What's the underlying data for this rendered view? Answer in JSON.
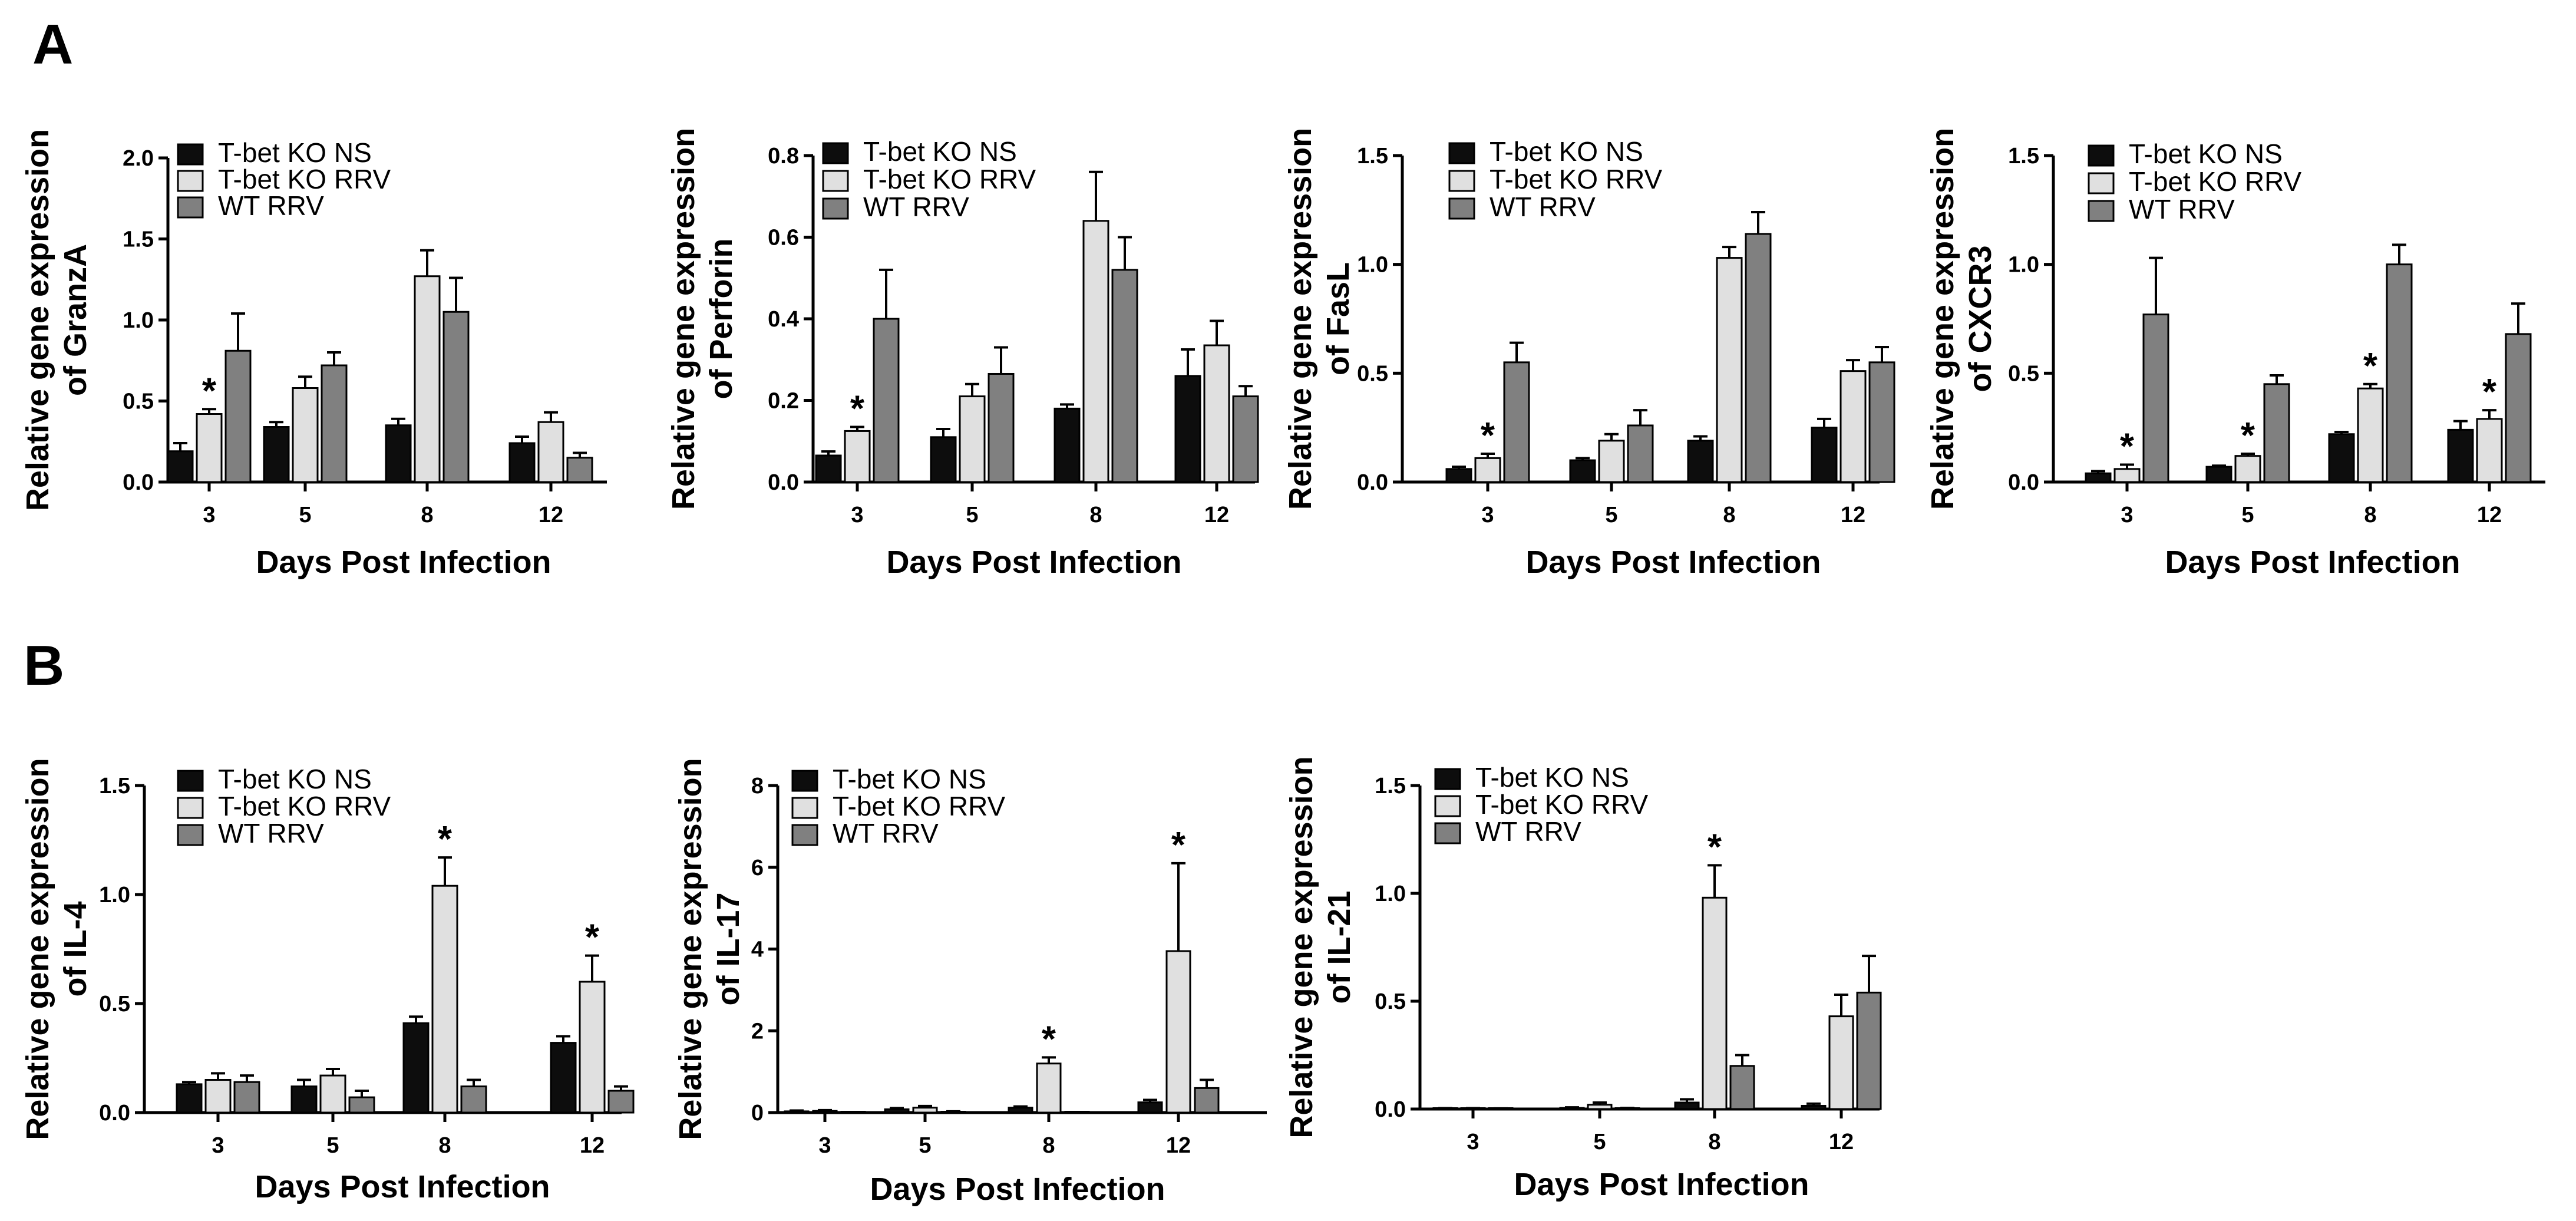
{
  "panel_labels": [
    "A",
    "B"
  ],
  "colors": {
    "T-bet KO NS": "#0d0d0d",
    "T-bet KO RRV": "#e0e0e0",
    "WT RRV": "#808080",
    "axis": "#000000"
  },
  "chart_data": [
    {
      "type": "bar",
      "panel": "A",
      "title": "",
      "ylabel": "Relative gene expression of GranzA",
      "xlabel": "Days Post Infection",
      "categories": [
        "3",
        "5",
        "8",
        "12"
      ],
      "ylim": [
        0,
        2.0
      ],
      "yticks": [
        "0.0",
        "0.5",
        "1.0",
        "1.5",
        "2.0"
      ],
      "legend": [
        "T-bet KO NS",
        "T-bet KO RRV",
        "WT RRV"
      ],
      "series": [
        {
          "name": "T-bet KO NS",
          "values": [
            0.19,
            0.34,
            0.35,
            0.24
          ],
          "errors": [
            0.05,
            0.03,
            0.04,
            0.04
          ]
        },
        {
          "name": "T-bet KO RRV",
          "values": [
            0.42,
            0.58,
            1.27,
            0.37
          ],
          "errors": [
            0.03,
            0.07,
            0.16,
            0.06
          ]
        },
        {
          "name": "WT RRV",
          "values": [
            0.81,
            0.72,
            1.05,
            0.15
          ],
          "errors": [
            0.23,
            0.08,
            0.21,
            0.03
          ]
        }
      ],
      "significance": [
        {
          "series": 1,
          "category": 0,
          "label": "*"
        }
      ]
    },
    {
      "type": "bar",
      "panel": "A",
      "title": "",
      "ylabel": "Relative gene expression of Perforin",
      "xlabel": "Days Post Infection",
      "categories": [
        "3",
        "5",
        "8",
        "12"
      ],
      "ylim": [
        0,
        0.8
      ],
      "yticks": [
        "0.0",
        "0.2",
        "0.4",
        "0.6",
        "0.8"
      ],
      "legend": [
        "T-bet KO NS",
        "T-bet KO RRV",
        "WT RRV"
      ],
      "series": [
        {
          "name": "T-bet KO NS",
          "values": [
            0.065,
            0.11,
            0.18,
            0.26
          ],
          "errors": [
            0.01,
            0.02,
            0.01,
            0.065
          ]
        },
        {
          "name": "T-bet KO RRV",
          "values": [
            0.125,
            0.21,
            0.64,
            0.335
          ],
          "errors": [
            0.01,
            0.03,
            0.12,
            0.06
          ]
        },
        {
          "name": "WT RRV",
          "values": [
            0.4,
            0.265,
            0.52,
            0.21
          ],
          "errors": [
            0.12,
            0.065,
            0.08,
            0.025
          ]
        }
      ],
      "significance": [
        {
          "series": 1,
          "category": 0,
          "label": "*"
        }
      ]
    },
    {
      "type": "bar",
      "panel": "A",
      "title": "",
      "ylabel": "Relative gene expression of FasL",
      "xlabel": "Days Post Infection",
      "categories": [
        "3",
        "5",
        "8",
        "12"
      ],
      "ylim": [
        0,
        1.5
      ],
      "yticks": [
        "0.0",
        "0.5",
        "1.0",
        "1.5"
      ],
      "legend": [
        "T-bet KO NS",
        "T-bet KO RRV",
        "WT RRV"
      ],
      "series": [
        {
          "name": "T-bet KO NS",
          "values": [
            0.06,
            0.1,
            0.19,
            0.25
          ],
          "errors": [
            0.01,
            0.01,
            0.02,
            0.04
          ]
        },
        {
          "name": "T-bet KO RRV",
          "values": [
            0.11,
            0.19,
            1.03,
            0.51
          ],
          "errors": [
            0.02,
            0.03,
            0.05,
            0.05
          ]
        },
        {
          "name": "WT RRV",
          "values": [
            0.55,
            0.26,
            1.14,
            0.55
          ],
          "errors": [
            0.09,
            0.07,
            0.1,
            0.07
          ]
        }
      ],
      "significance": [
        {
          "series": 1,
          "category": 0,
          "label": "*"
        }
      ]
    },
    {
      "type": "bar",
      "panel": "A",
      "title": "",
      "ylabel": "Relative gene expression of CXCR3",
      "xlabel": "Days Post Infection",
      "categories": [
        "3",
        "5",
        "8",
        "12"
      ],
      "ylim": [
        0,
        1.5
      ],
      "yticks": [
        "0.0",
        "0.5",
        "1.0",
        "1.5"
      ],
      "legend": [
        "T-bet KO NS",
        "T-bet KO RRV",
        "WT RRV"
      ],
      "series": [
        {
          "name": "T-bet KO NS",
          "values": [
            0.04,
            0.07,
            0.22,
            0.24
          ],
          "errors": [
            0.01,
            0.005,
            0.01,
            0.04
          ]
        },
        {
          "name": "T-bet KO RRV",
          "values": [
            0.06,
            0.12,
            0.43,
            0.29
          ],
          "errors": [
            0.02,
            0.01,
            0.02,
            0.04
          ]
        },
        {
          "name": "WT RRV",
          "values": [
            0.77,
            0.45,
            1.0,
            0.68
          ],
          "errors": [
            0.26,
            0.04,
            0.09,
            0.14
          ]
        }
      ],
      "significance": [
        {
          "series": 1,
          "category": 0,
          "label": "*"
        },
        {
          "series": 1,
          "category": 1,
          "label": "*"
        },
        {
          "series": 1,
          "category": 2,
          "label": "*"
        },
        {
          "series": 1,
          "category": 3,
          "label": "*"
        }
      ]
    },
    {
      "type": "bar",
      "panel": "B",
      "title": "",
      "ylabel": "Relative gene expression of IL-4",
      "xlabel": "Days Post Infection",
      "categories": [
        "3",
        "5",
        "8",
        "12"
      ],
      "ylim": [
        0,
        1.5
      ],
      "yticks": [
        "0.0",
        "0.5",
        "1.0",
        "1.5"
      ],
      "legend": [
        "T-bet KO NS",
        "T-bet KO RRV",
        "WT RRV"
      ],
      "series": [
        {
          "name": "T-bet KO NS",
          "values": [
            0.13,
            0.12,
            0.41,
            0.32
          ],
          "errors": [
            0.01,
            0.03,
            0.03,
            0.03
          ]
        },
        {
          "name": "T-bet KO RRV",
          "values": [
            0.15,
            0.17,
            1.04,
            0.6
          ],
          "errors": [
            0.03,
            0.03,
            0.13,
            0.12
          ]
        },
        {
          "name": "WT RRV",
          "values": [
            0.14,
            0.07,
            0.12,
            0.1
          ],
          "errors": [
            0.03,
            0.03,
            0.03,
            0.02
          ]
        }
      ],
      "significance": [
        {
          "series": 1,
          "category": 2,
          "label": "*"
        },
        {
          "series": 1,
          "category": 3,
          "label": "*"
        }
      ]
    },
    {
      "type": "bar",
      "panel": "B",
      "title": "",
      "ylabel": "Relative gene expression of IL-17",
      "xlabel": "Days Post Infection",
      "categories": [
        "3",
        "5",
        "8",
        "12"
      ],
      "ylim": [
        0,
        8
      ],
      "yticks": [
        "0",
        "2",
        "4",
        "6",
        "8"
      ],
      "legend": [
        "T-bet KO NS",
        "T-bet KO RRV",
        "WT RRV"
      ],
      "series": [
        {
          "name": "T-bet KO NS",
          "values": [
            0.03,
            0.08,
            0.12,
            0.25
          ],
          "errors": [
            0.02,
            0.03,
            0.03,
            0.06
          ]
        },
        {
          "name": "T-bet KO RRV",
          "values": [
            0.04,
            0.12,
            1.2,
            3.95
          ],
          "errors": [
            0.02,
            0.04,
            0.15,
            2.15
          ]
        },
        {
          "name": "WT RRV",
          "values": [
            0.01,
            0.02,
            0.01,
            0.6
          ],
          "errors": [
            0.005,
            0.01,
            0.005,
            0.2
          ]
        }
      ],
      "significance": [
        {
          "series": 1,
          "category": 2,
          "label": "*"
        },
        {
          "series": 1,
          "category": 3,
          "label": "*"
        }
      ]
    },
    {
      "type": "bar",
      "panel": "B",
      "title": "",
      "ylabel": "Relative gene expression of IL-21",
      "xlabel": "Days Post Infection",
      "categories": [
        "3",
        "5",
        "8",
        "12"
      ],
      "ylim": [
        0,
        1.5
      ],
      "yticks": [
        "0.0",
        "0.5",
        "1.0",
        "1.5"
      ],
      "legend": [
        "T-bet KO NS",
        "T-bet KO RRV",
        "WT RRV"
      ],
      "series": [
        {
          "name": "T-bet KO NS",
          "values": [
            0.002,
            0.005,
            0.03,
            0.015
          ],
          "errors": [
            0.002,
            0.003,
            0.015,
            0.01
          ]
        },
        {
          "name": "T-bet KO RRV",
          "values": [
            0.002,
            0.02,
            0.98,
            0.43
          ],
          "errors": [
            0.002,
            0.01,
            0.15,
            0.1
          ]
        },
        {
          "name": "WT RRV",
          "values": [
            0.002,
            0.003,
            0.2,
            0.54
          ],
          "errors": [
            0.001,
            0.002,
            0.05,
            0.17
          ]
        }
      ],
      "significance": [
        {
          "series": 1,
          "category": 2,
          "label": "*"
        }
      ]
    }
  ]
}
